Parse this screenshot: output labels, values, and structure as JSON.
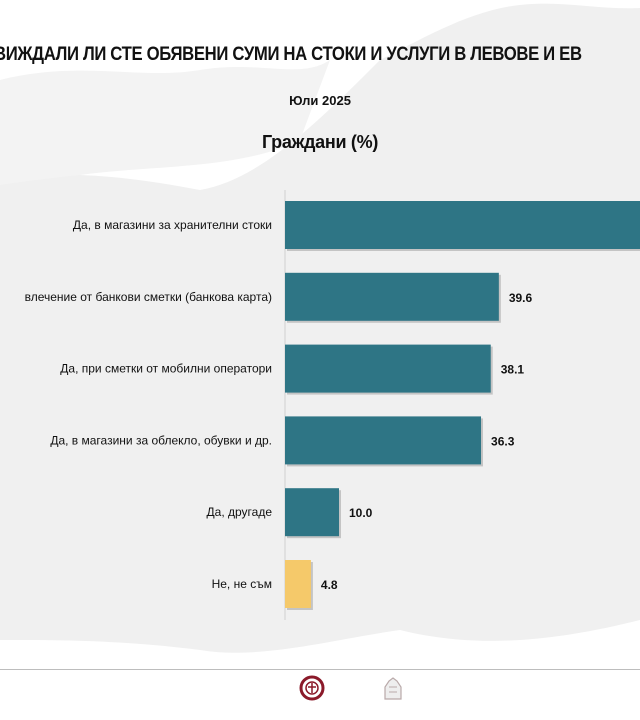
{
  "chart_data": {
    "type": "bar",
    "orientation": "horizontal",
    "title": "ВИЖДАЛИ ЛИ СТЕ ОБЯВЕНИ СУМИ НА СТОКИ И УСЛУГИ В ЛЕВОВЕ И ЕВ",
    "subtitle": "Юли 2025",
    "group_label": "Граждани (%)",
    "categories": [
      "Да, в магазини за хранителни стоки",
      "влечение от банкови сметки (банкова карта)",
      "Да, при сметки от мобилни оператори",
      "Да, в магазини за облекло, обувки и др.",
      "Да, другаде",
      "Не, не съм"
    ],
    "values": [
      null,
      39.6,
      38.1,
      36.3,
      10.0,
      4.8
    ],
    "value_labels": [
      "",
      "39.6",
      "38.1",
      "36.3",
      "10.0",
      "4.8"
    ],
    "colors": [
      "#2e7585",
      "#2e7585",
      "#2e7585",
      "#2e7585",
      "#2e7585",
      "#f5c96a"
    ],
    "grid": false,
    "legend": "none"
  },
  "footer": {
    "logos": [
      {
        "name": "Министерство на финансите на Република България"
      },
      {
        "name": "Българска народна банка"
      }
    ]
  }
}
